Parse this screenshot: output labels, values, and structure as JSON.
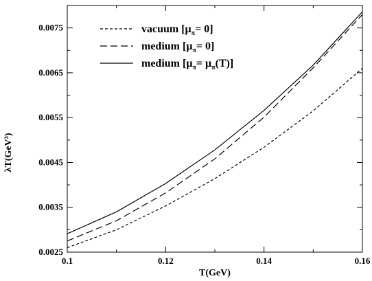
{
  "chart_data": {
    "type": "line",
    "xlabel": "T(GeV)",
    "ylabel": "λT(GeV³)",
    "xlim": [
      0.1,
      0.16
    ],
    "ylim": [
      0.0025,
      0.008
    ],
    "xticks": [
      0.1,
      0.12,
      0.14,
      0.16
    ],
    "xtick_labels": [
      "0.1",
      "0.12",
      "0.14",
      "0.16"
    ],
    "yticks": [
      0.0025,
      0.0035,
      0.0045,
      0.0055,
      0.0065,
      0.0075
    ],
    "ytick_labels": [
      "0.0025",
      "0.0035",
      "0.0045",
      "0.0055",
      "0.0065",
      "0.0075"
    ],
    "grid": false,
    "legend_position": "top-left",
    "series": [
      {
        "name": "vacuum [μπ= 0]",
        "label_main": "vacuum [μ",
        "label_sub": "π",
        "label_tail": "= 0]",
        "dash": "4,3",
        "x": [
          0.1,
          0.11,
          0.12,
          0.13,
          0.14,
          0.15,
          0.16
        ],
        "values": [
          0.0026,
          0.003,
          0.00353,
          0.00414,
          0.00484,
          0.00565,
          0.0066
        ]
      },
      {
        "name": "medium [μπ= 0]",
        "label_main": "medium [μ",
        "label_sub": "π",
        "label_tail": "= 0]",
        "dash": "10,5",
        "x": [
          0.1,
          0.11,
          0.12,
          0.13,
          0.14,
          0.15,
          0.16
        ],
        "values": [
          0.00275,
          0.0032,
          0.00382,
          0.00458,
          0.00551,
          0.00661,
          0.0078
        ]
      },
      {
        "name": "medium [μπ= μπ(T)]",
        "label_main": "medium [μ",
        "label_sub": "π",
        "label_tail": "= μ",
        "label_sub2": "π",
        "label_tail2": "(T)]",
        "dash": "",
        "x": [
          0.1,
          0.11,
          0.12,
          0.13,
          0.14,
          0.15,
          0.16
        ],
        "values": [
          0.00291,
          0.0034,
          0.00403,
          0.00478,
          0.00566,
          0.00667,
          0.00786
        ]
      }
    ]
  }
}
